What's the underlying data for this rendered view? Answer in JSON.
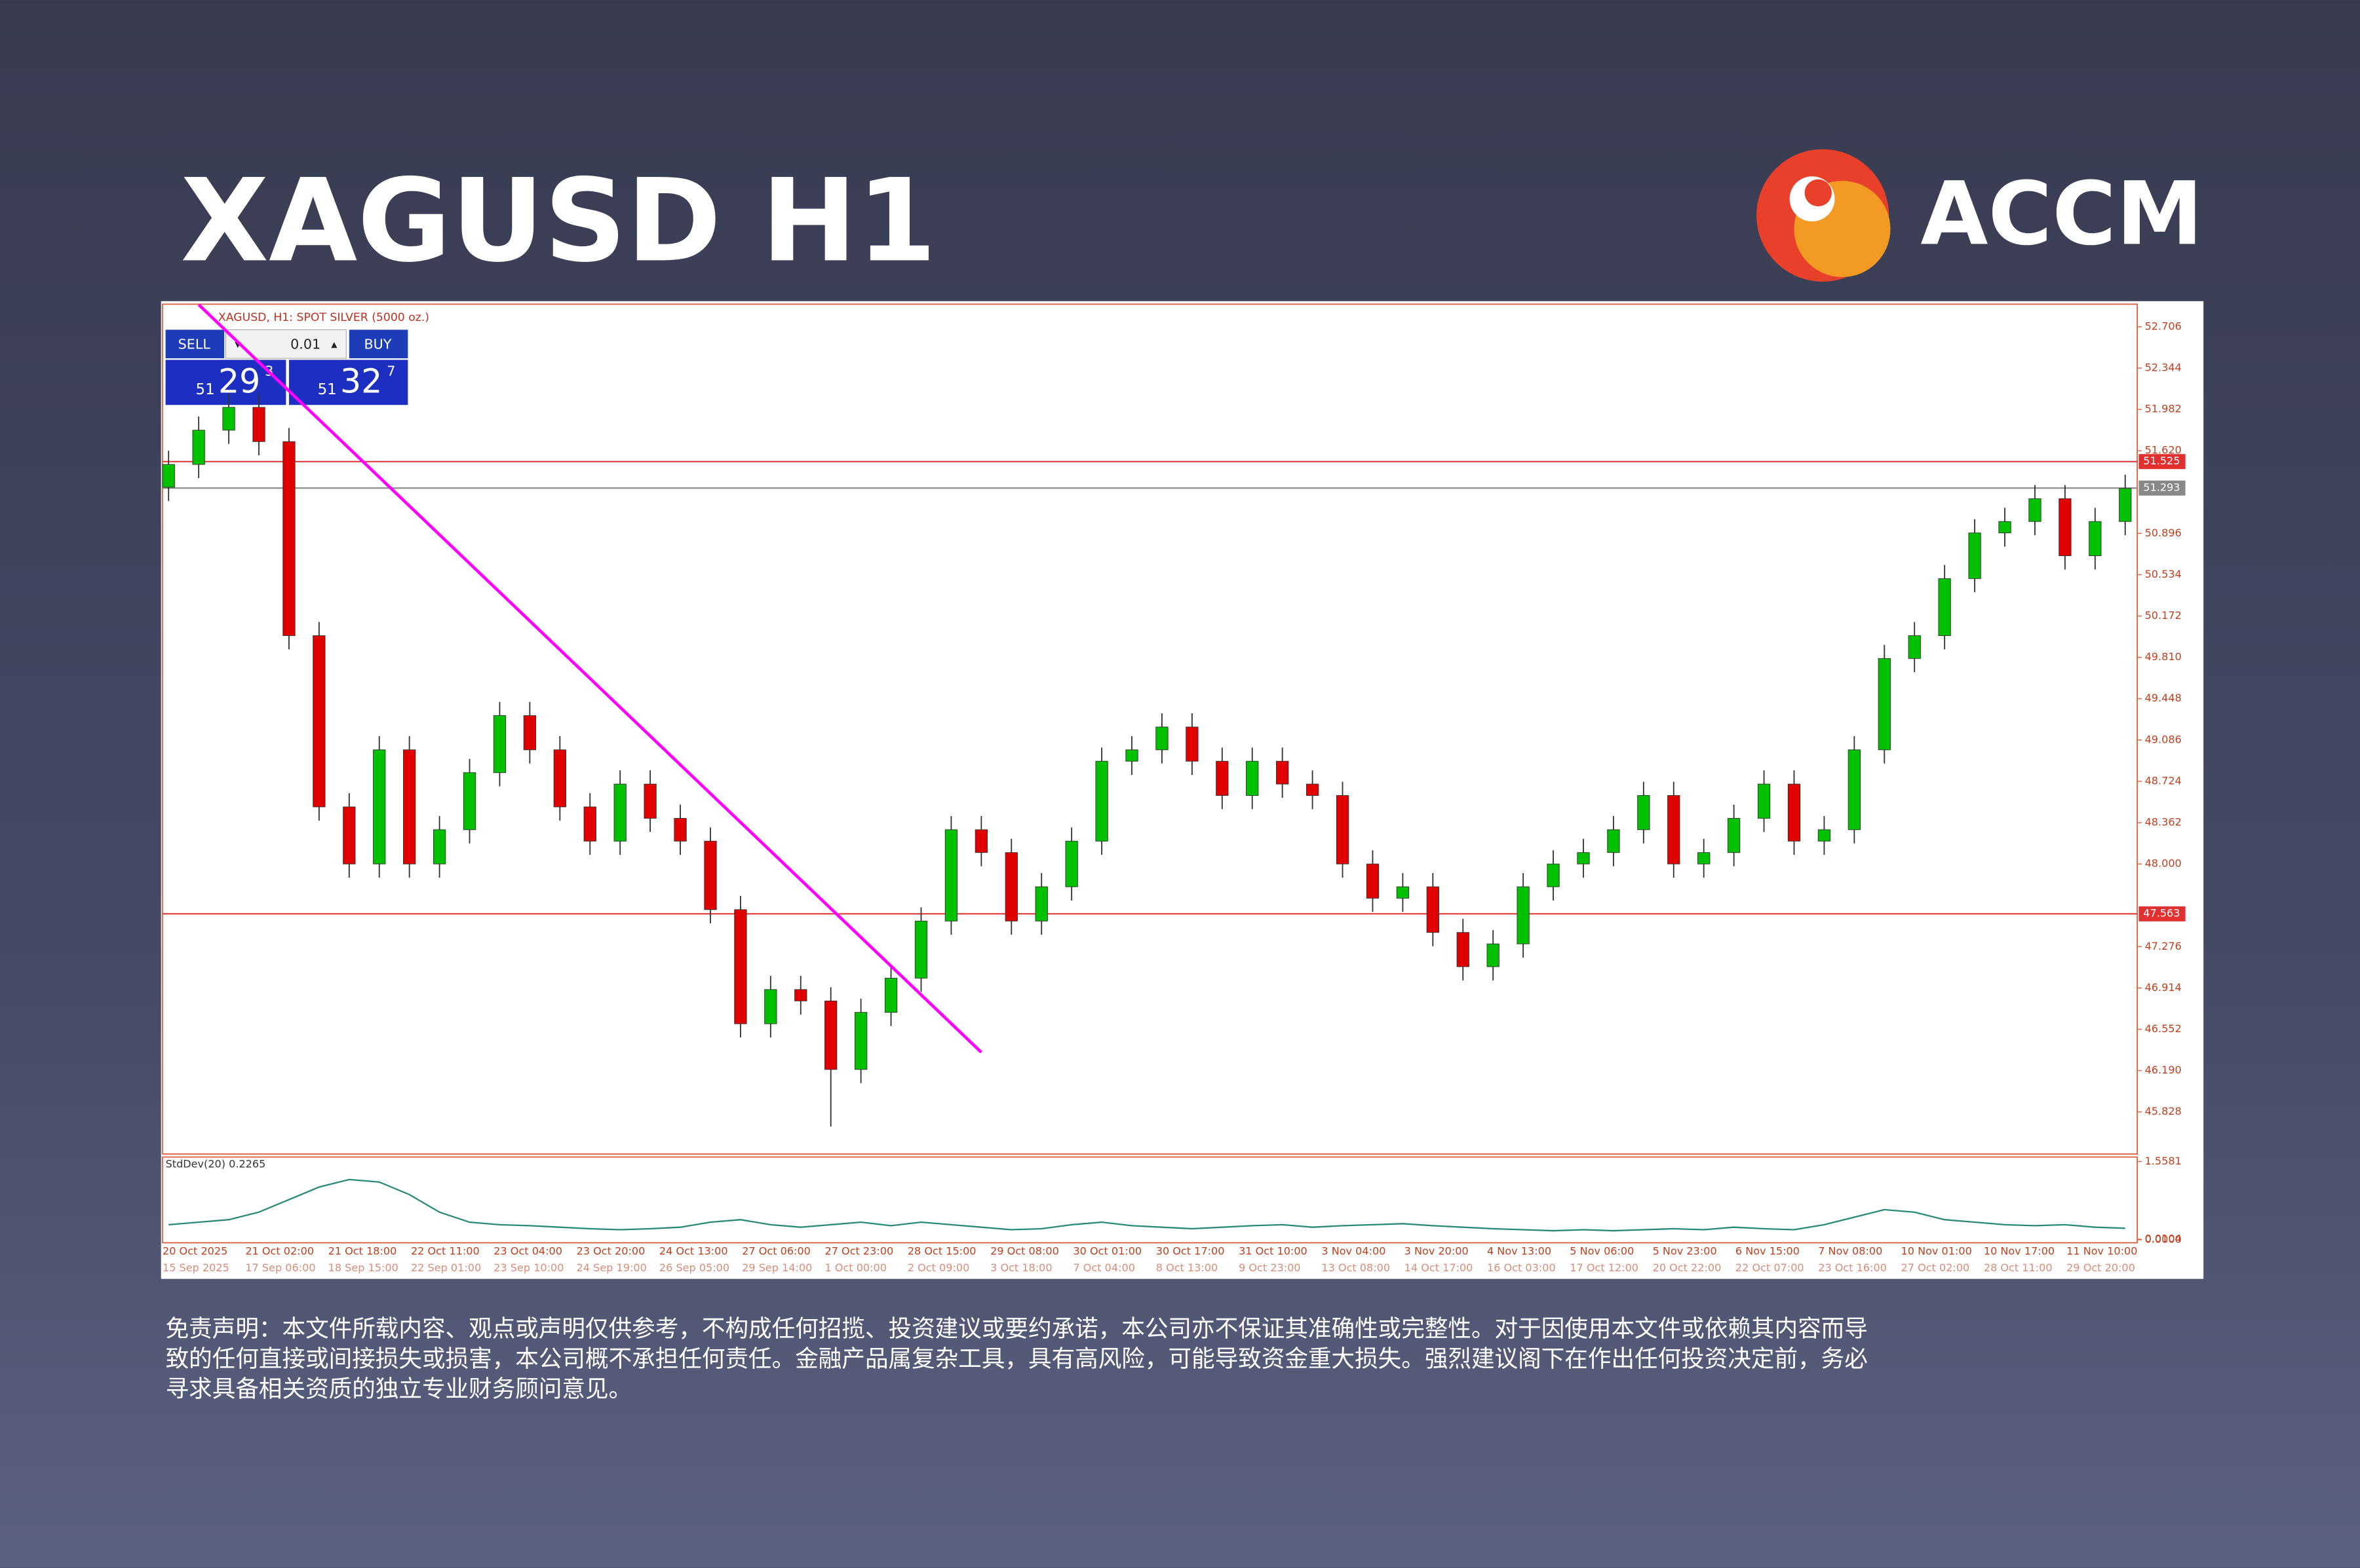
{
  "header": {
    "title": "XAGUSD H1",
    "brand": "ACCM"
  },
  "chart_data": {
    "type": "candlestick",
    "title": "XAGUSD, H1: SPOT SILVER (5000 oz.)",
    "open": [
      51.3,
      51.5,
      51.8,
      52.0,
      51.7,
      50.0,
      48.5,
      48.0,
      49.0,
      48.0,
      48.3,
      48.8,
      49.3,
      49.0,
      48.5,
      48.2,
      48.7,
      48.4,
      48.2,
      47.6,
      46.6,
      46.9,
      46.8,
      46.2,
      46.7,
      47.0,
      47.5,
      48.3,
      48.1,
      47.5,
      47.8,
      48.2,
      48.9,
      49.0,
      49.2,
      48.9,
      48.6,
      48.9,
      48.7,
      48.6,
      48.0,
      47.7,
      47.8,
      47.4,
      47.1,
      47.3,
      47.8,
      48.0,
      48.1,
      48.3,
      48.6,
      48.0,
      48.1,
      48.4,
      48.7,
      48.2,
      48.3,
      49.0,
      49.8,
      50.0,
      50.5,
      50.9,
      51.0,
      51.2,
      50.7,
      51.0
    ],
    "high": [
      51.62,
      51.92,
      52.12,
      52.12,
      51.82,
      50.12,
      48.62,
      49.12,
      49.12,
      48.42,
      48.92,
      49.42,
      49.42,
      49.12,
      48.62,
      48.82,
      48.82,
      48.52,
      48.32,
      47.72,
      47.02,
      47.02,
      46.92,
      46.82,
      47.12,
      47.62,
      48.42,
      48.42,
      48.22,
      47.92,
      48.32,
      49.02,
      49.12,
      49.32,
      49.32,
      49.02,
      49.02,
      49.02,
      48.82,
      48.72,
      48.12,
      47.92,
      47.92,
      47.52,
      47.42,
      47.92,
      48.12,
      48.22,
      48.42,
      48.72,
      48.72,
      48.22,
      48.52,
      48.82,
      48.82,
      48.42,
      49.12,
      49.92,
      50.12,
      50.62,
      51.02,
      51.12,
      51.32,
      51.32,
      51.12,
      51.41
    ],
    "low": [
      51.18,
      51.38,
      51.68,
      51.58,
      49.88,
      48.38,
      47.88,
      47.88,
      47.88,
      47.88,
      48.18,
      48.68,
      48.88,
      48.38,
      48.08,
      48.08,
      48.28,
      48.08,
      47.48,
      46.48,
      46.48,
      46.68,
      45.7,
      46.08,
      46.58,
      46.88,
      47.38,
      47.98,
      47.38,
      47.38,
      47.68,
      48.08,
      48.78,
      48.88,
      48.78,
      48.48,
      48.48,
      48.58,
      48.48,
      47.88,
      47.58,
      47.58,
      47.28,
      46.98,
      46.98,
      47.18,
      47.68,
      47.88,
      47.98,
      48.18,
      47.88,
      47.88,
      47.98,
      48.28,
      48.08,
      48.08,
      48.18,
      48.88,
      49.68,
      49.88,
      50.38,
      50.78,
      50.88,
      50.58,
      50.58,
      50.88
    ],
    "close": [
      51.5,
      51.8,
      52.0,
      51.7,
      50.0,
      48.5,
      48.0,
      49.0,
      48.0,
      48.3,
      48.8,
      49.3,
      49.0,
      48.5,
      48.2,
      48.7,
      48.4,
      48.2,
      47.6,
      46.6,
      46.9,
      46.8,
      46.2,
      46.7,
      47.0,
      47.5,
      48.3,
      48.1,
      47.5,
      47.8,
      48.2,
      48.9,
      49.0,
      49.2,
      48.9,
      48.6,
      48.9,
      48.7,
      48.6,
      48.0,
      47.7,
      47.8,
      47.4,
      47.1,
      47.3,
      47.8,
      48.0,
      48.1,
      48.3,
      48.6,
      48.0,
      48.1,
      48.4,
      48.7,
      48.2,
      48.3,
      49.0,
      49.8,
      50.0,
      50.5,
      50.9,
      51.0,
      51.2,
      50.7,
      51.0,
      51.29
    ],
    "up_color": "#00c000",
    "down_color": "#e00000",
    "ylim": [
      45.459,
      52.904
    ],
    "yticks": [
      52.706,
      52.344,
      51.982,
      {
        "value": 51.62,
        "label": "51.620"
      },
      50.896,
      50.534,
      50.172,
      {
        "value": 49.81,
        "label": "49.810"
      },
      49.448,
      49.086,
      48.724,
      48.362,
      {
        "value": 48,
        "label": "48.000"
      },
      47.276,
      46.914,
      46.552,
      {
        "value": 46.19,
        "label": "46.190"
      },
      45.828
    ],
    "levels": [
      51.525,
      51.293,
      47.563
    ],
    "level_colors": [
      "#e03030",
      "#888888",
      "#e03030"
    ],
    "trendline": {
      "x": [
        1,
        27
      ],
      "values": [
        52.9,
        46.35
      ],
      "color": "#ff00ff"
    },
    "x_labels": [
      "20 Oct 2025",
      "21 Oct 02:00",
      "21 Oct 18:00",
      "22 Oct 11:00",
      "23 Oct 04:00",
      "23 Oct 20:00",
      "24 Oct 13:00",
      "27 Oct 06:00",
      "27 Oct 23:00",
      "28 Oct 15:00",
      "29 Oct 08:00",
      "30 Oct 01:00",
      "30 Oct 17:00",
      "31 Oct 10:00",
      "3 Nov 04:00",
      "3 Nov 20:00",
      "4 Nov 13:00",
      "5 Nov 06:00",
      "5 Nov 23:00",
      "6 Nov 15:00",
      "7 Nov 08:00",
      "10 Nov 01:00",
      "10 Nov 17:00",
      "11 Nov 10:00"
    ],
    "x_labels_2": [
      "15 Sep 2025",
      "17 Sep 06:00",
      "18 Sep 15:00",
      "22 Sep 01:00",
      "23 Sep 10:00",
      "24 Sep 19:00",
      "26 Sep 05:00",
      "29 Sep 14:00",
      "1 Oct 00:00",
      "2 Oct 09:00",
      "3 Oct 18:00",
      "7 Oct 04:00",
      "8 Oct 13:00",
      "9 Oct 23:00",
      "13 Oct 08:00",
      "14 Oct 17:00",
      "16 Oct 03:00",
      "17 Oct 12:00",
      "20 Oct 22:00",
      "22 Oct 07:00",
      "23 Oct 16:00",
      "27 Oct 02:00",
      "28 Oct 11:00",
      "29 Oct 20:00"
    ],
    "indicator": {
      "type": "line",
      "title": "StdDev(20) 0.2265",
      "color": "#2a8a7a",
      "values": [
        0.3,
        0.35,
        0.4,
        0.55,
        0.8,
        1.05,
        1.2,
        1.15,
        0.9,
        0.55,
        0.35,
        0.3,
        0.28,
        0.25,
        0.22,
        0.2,
        0.22,
        0.25,
        0.35,
        0.4,
        0.3,
        0.25,
        0.3,
        0.35,
        0.28,
        0.35,
        0.3,
        0.25,
        0.2,
        0.22,
        0.3,
        0.35,
        0.28,
        0.25,
        0.22,
        0.25,
        0.28,
        0.3,
        0.25,
        0.28,
        0.3,
        0.32,
        0.28,
        0.25,
        0.22,
        0.2,
        0.18,
        0.2,
        0.18,
        0.2,
        0.22,
        0.2,
        0.25,
        0.22,
        0.2,
        0.3,
        0.45,
        0.6,
        0.55,
        0.4,
        0.35,
        0.3,
        0.28,
        0.3,
        0.25,
        0.23
      ],
      "ylim": [
        0,
        1.5581
      ],
      "yticks": [
        1.5581,
        0.0104,
        {
          "value": 0,
          "label": "0.0000"
        }
      ]
    }
  },
  "trade_panel": {
    "sell": "SELL",
    "buy": "BUY",
    "lot": "0.01",
    "bid": {
      "big": "51",
      "main": "29",
      "small": "3"
    },
    "ask": {
      "big": "51",
      "main": "32",
      "small": "7"
    }
  },
  "disclaimer": [
    "免责声明：本文件所载内容、观点或声明仅供参考，不构成任何招揽、投资建议或要约承诺，本公司亦不保证其准确性或完整性。对于因使用本文件或依赖其内容而导",
    "致的任何直接或间接损失或损害，本公司概不承担任何责任。金融产品属复杂工具，具有高风险，可能导致资金重大损失。强烈建议阁下在作出任何投资决定前，务必",
    "寻求具备相关资质的独立专业财务顾问意见。"
  ]
}
